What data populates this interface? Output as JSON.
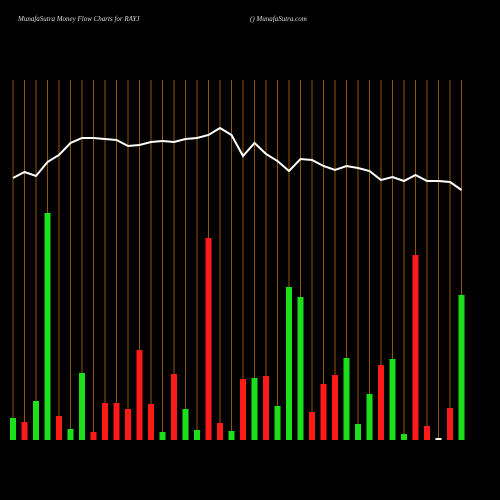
{
  "chart_data": {
    "type": "bar-line",
    "title": "MunafaSutra  Money Flow  Charts for RAYJ",
    "subtitle": "() MunafaSutra.com",
    "categories": [
      null,
      null,
      null,
      null,
      null,
      null,
      null,
      null,
      null,
      null,
      null,
      null,
      null,
      null,
      null,
      null,
      null,
      null,
      null,
      null,
      null,
      null,
      null,
      null,
      null,
      null,
      null,
      null,
      null,
      null,
      null,
      null,
      null,
      null,
      null,
      null,
      null,
      null,
      null,
      null
    ],
    "ylim": [
      0,
      360
    ],
    "grid_color": "#b8690a",
    "series": [
      {
        "kind": "bar",
        "values": [
          22,
          18,
          39,
          227,
          24,
          11,
          67,
          8,
          37,
          37,
          31,
          90,
          36,
          8,
          66,
          31,
          10,
          202,
          17,
          9,
          61,
          62,
          64,
          34,
          153,
          143,
          28,
          56,
          65,
          82,
          16,
          46,
          75,
          81,
          6,
          185,
          14,
          2,
          32,
          145
        ],
        "colors": [
          "#1be01b",
          "#ff1a1a",
          "#1be01b",
          "#1be01b",
          "#ff1a1a",
          "#1be01b",
          "#1be01b",
          "#ff1a1a",
          "#ff1a1a",
          "#ff1a1a",
          "#ff1a1a",
          "#ff1a1a",
          "#ff1a1a",
          "#1be01b",
          "#ff1a1a",
          "#1be01b",
          "#1be01b",
          "#ff1a1a",
          "#ff1a1a",
          "#1be01b",
          "#ff1a1a",
          "#1be01b",
          "#ff1a1a",
          "#1be01b",
          "#1be01b",
          "#1be01b",
          "#ff1a1a",
          "#ff1a1a",
          "#ff1a1a",
          "#1be01b",
          "#1be01b",
          "#1be01b",
          "#ff1a1a",
          "#1be01b",
          "#1be01b",
          "#ff1a1a",
          "#ff1a1a",
          "#ffffff",
          "#ff1a1a",
          "#1be01b"
        ]
      },
      {
        "kind": "line",
        "color": "#ffffff",
        "values": [
          262,
          268,
          264,
          278,
          285,
          297,
          302,
          302,
          301,
          300,
          294,
          295,
          298,
          299,
          298,
          301,
          302,
          305,
          312,
          305,
          284,
          297,
          286,
          279,
          269,
          281,
          280,
          274,
          270,
          274,
          272,
          269,
          260,
          263,
          259,
          265,
          259,
          259,
          258,
          250
        ]
      }
    ]
  }
}
